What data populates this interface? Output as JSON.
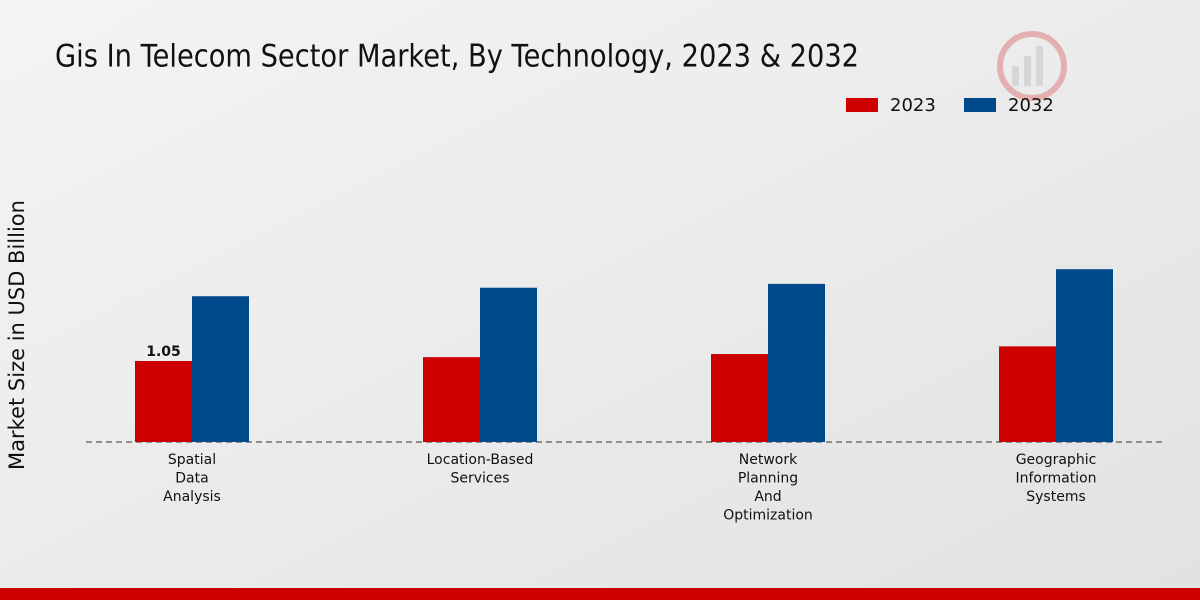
{
  "chart_data": {
    "type": "bar",
    "title": "Gis In Telecom Sector Market, By Technology, 2023 & 2032",
    "y_label": "Market Size in USD Billion",
    "categories": [
      "Spatial Data Analysis",
      "Location-Based Services",
      "Network Planning And Optimization",
      "Geographic Information Systems"
    ],
    "series": [
      {
        "name": "2023",
        "color": "#cc0000",
        "values": [
          1.05,
          1.1,
          1.14,
          1.24
        ]
      },
      {
        "name": "2032",
        "color": "#004a8c",
        "values": [
          1.89,
          2.0,
          2.05,
          2.24
        ]
      }
    ],
    "legend": "top-right"
  }
}
